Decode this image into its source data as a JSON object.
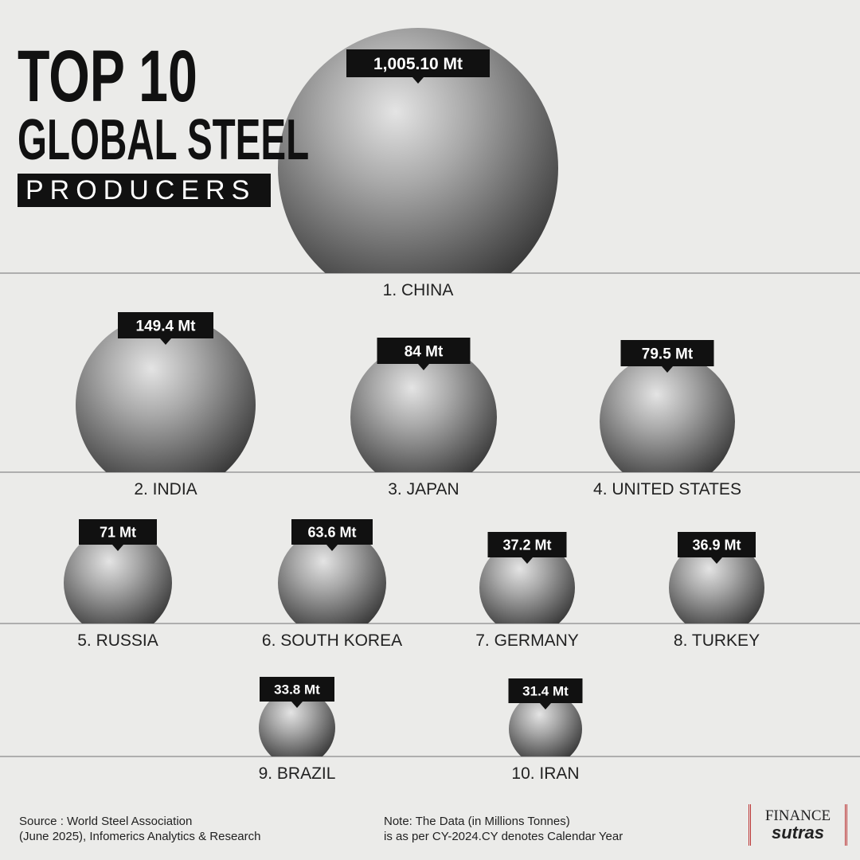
{
  "header": {
    "title_line1": "TOP 10",
    "title_line2": "GLOBAL STEEL",
    "title_line3": "PRODUCERS"
  },
  "items": [
    {
      "name": "1. CHINA",
      "value": "1,005.10 Mt"
    },
    {
      "name": "2. INDIA",
      "value": "149.4 Mt"
    },
    {
      "name": "3. JAPAN",
      "value": "84 Mt"
    },
    {
      "name": "4. UNITED STATES",
      "value": "79.5 Mt"
    },
    {
      "name": "5. RUSSIA",
      "value": "71 Mt"
    },
    {
      "name": "6. SOUTH KOREA",
      "value": "63.6 Mt"
    },
    {
      "name": "7. GERMANY",
      "value": "37.2 Mt"
    },
    {
      "name": "8. TURKEY",
      "value": "36.9 Mt"
    },
    {
      "name": "9. BRAZIL",
      "value": "33.8 Mt"
    },
    {
      "name": "10. IRAN",
      "value": "31.4 Mt"
    }
  ],
  "footer": {
    "source_line1": "Source : World Steel Association",
    "source_line2": "(June 2025), Infomerics Analytics & Research",
    "note_line1": "Note: The Data (in Millions Tonnes)",
    "note_line2": "is as per CY-2024.CY denotes Calendar Year",
    "logo_top": "FINANCE",
    "logo_bottom": "sutras"
  }
}
